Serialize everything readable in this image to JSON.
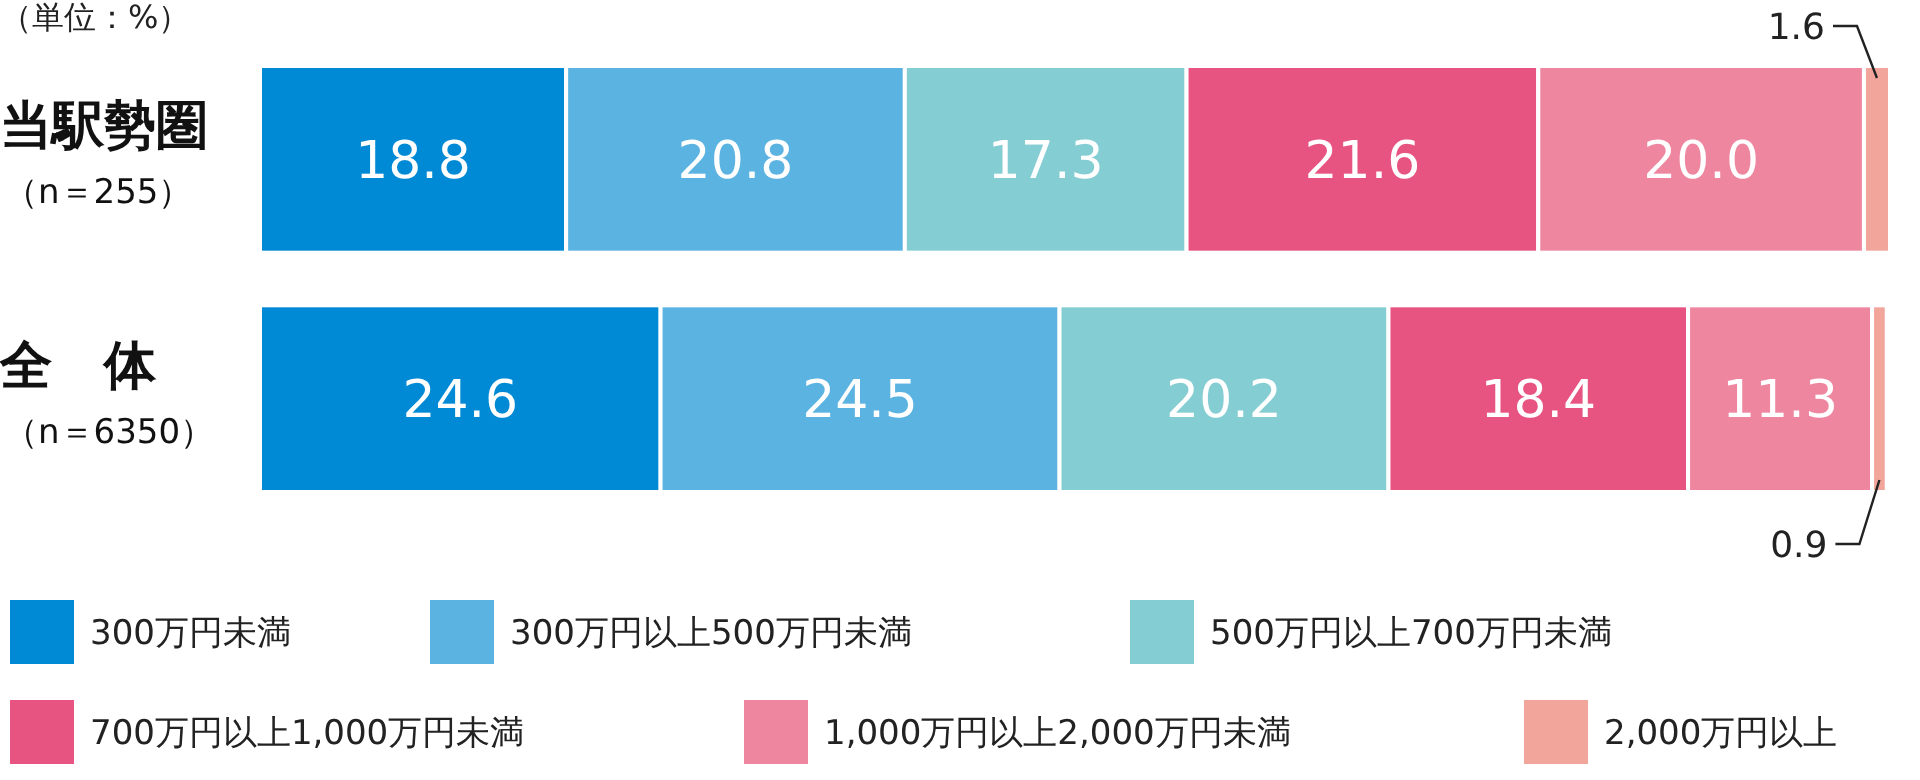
{
  "chart_data": {
    "type": "bar",
    "orientation": "horizontal",
    "stacked": true,
    "categories": [
      "当駅勢圏（n＝255）",
      "全　体（n＝6350）"
    ],
    "series": [
      {
        "name": "300万円未満",
        "color": "#0089d5",
        "values": [
          18.8,
          24.6
        ],
        "value_labels": [
          "18.8",
          "24.6"
        ]
      },
      {
        "name": "300万円以上500万円未満",
        "color": "#5bb3e2",
        "values": [
          20.8,
          24.5
        ],
        "value_labels": [
          "20.8",
          "24.5"
        ]
      },
      {
        "name": "500万円以上700万円未満",
        "color": "#84cdd2",
        "values": [
          17.3,
          20.2
        ],
        "value_labels": [
          "17.3",
          "20.2"
        ]
      },
      {
        "name": "700万円以上1,000万円未満",
        "color": "#e85482",
        "values": [
          21.6,
          18.4
        ],
        "value_labels": [
          "21.6",
          "18.4"
        ]
      },
      {
        "name": "1,000万円以上2,000万円未満",
        "color": "#ee869f",
        "values": [
          20.0,
          11.3
        ],
        "value_labels": [
          "20.0",
          "11.3"
        ]
      },
      {
        "name": "2,000万円以上",
        "color": "#f2a59b",
        "values": [
          1.6,
          0.9
        ],
        "value_labels": [
          "1.6",
          "0.9"
        ]
      }
    ],
    "xlim": [
      0,
      100.1
    ],
    "tick_labels": "y",
    "legend": "bottom",
    "grid": false,
    "annotations": [
      "（単位：%）"
    ]
  }
}
